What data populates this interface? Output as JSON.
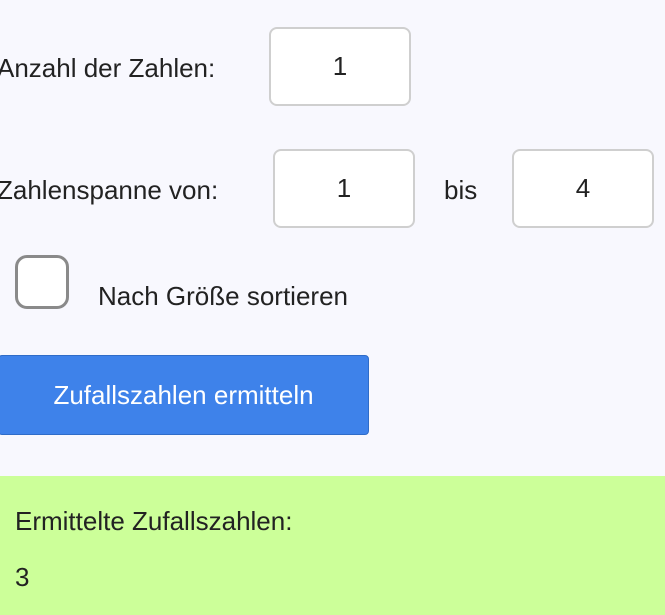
{
  "count": {
    "label": "Anzahl der Zahlen:",
    "value": "1"
  },
  "range": {
    "label": "Zahlenspanne von:",
    "from": "1",
    "to_label": "bis",
    "to": "4"
  },
  "sort": {
    "label": "Nach Größe sortieren",
    "checked": false
  },
  "button": {
    "label": "Zufallszahlen ermitteln"
  },
  "result": {
    "title": "Ermittelte Zufallszahlen:",
    "value": "3"
  },
  "colors": {
    "background": "#f8f8fe",
    "button": "#3e82ea",
    "result_background": "#ccff99"
  }
}
